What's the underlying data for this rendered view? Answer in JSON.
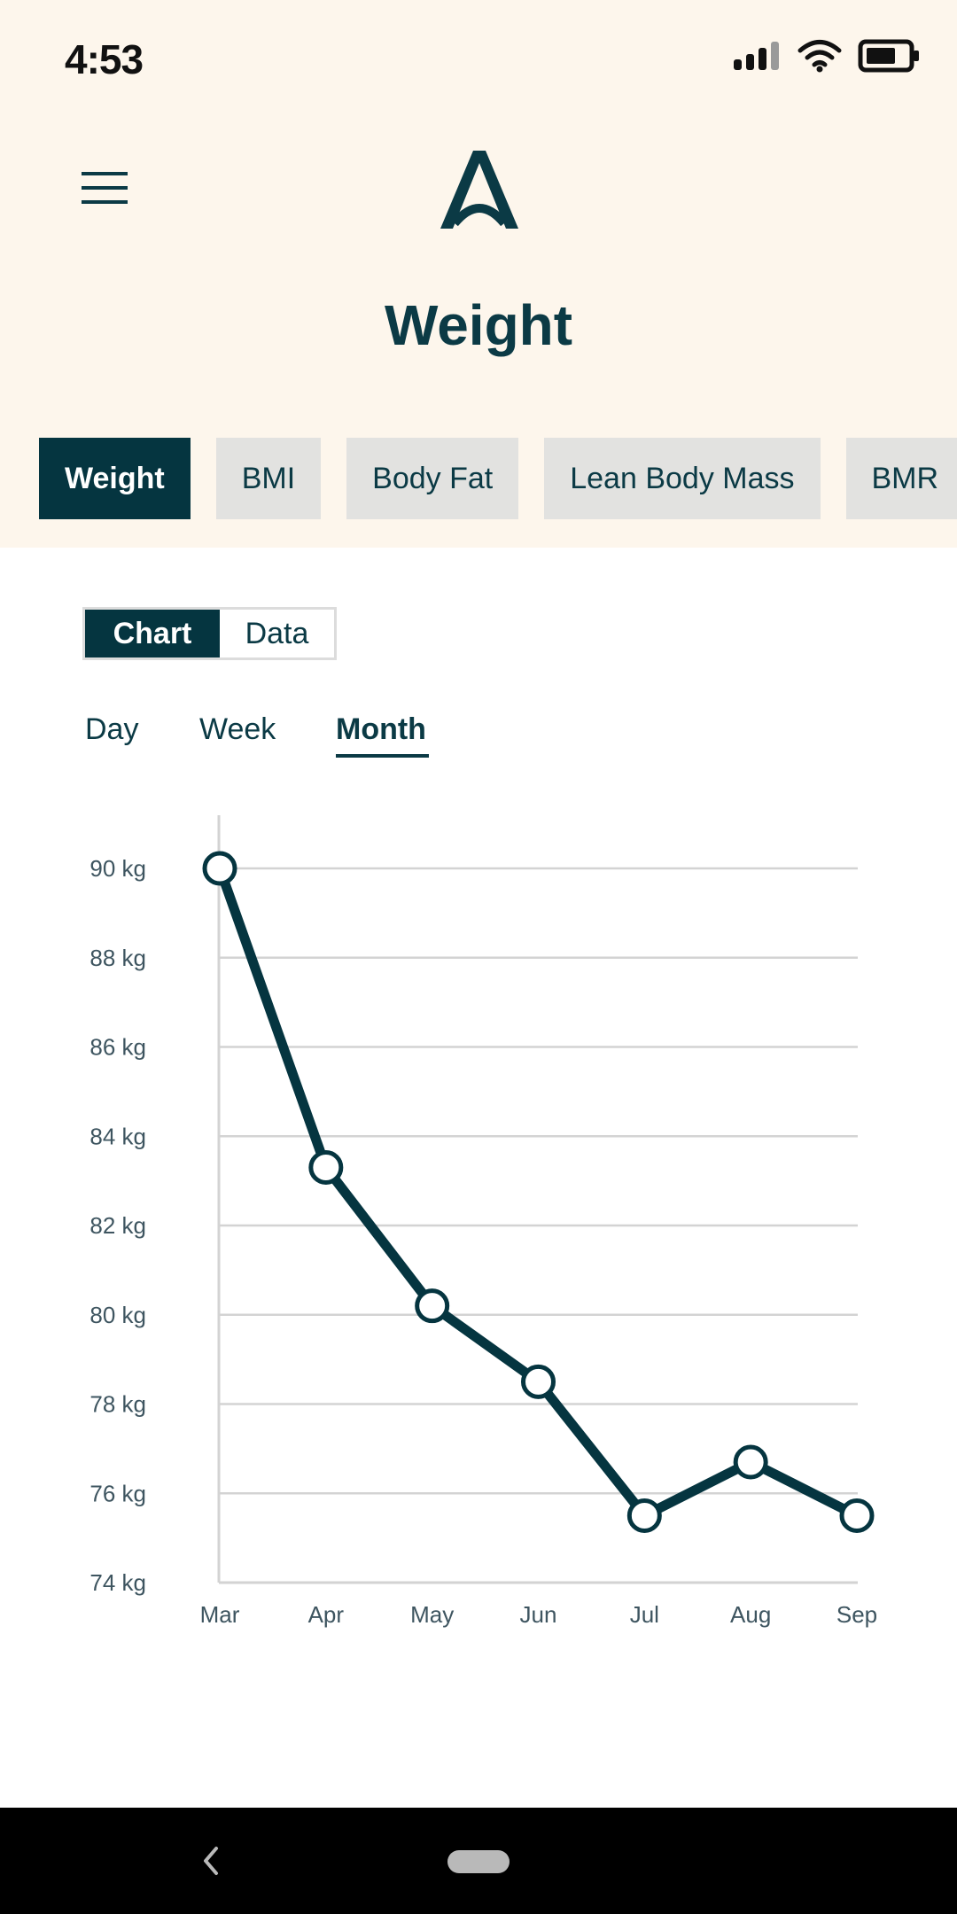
{
  "status_bar": {
    "time": "4:53"
  },
  "header": {
    "title": "Weight"
  },
  "metric_tabs": [
    "Weight",
    "BMI",
    "Body Fat",
    "Lean Body Mass",
    "BMR"
  ],
  "view_toggle": {
    "chart_label": "Chart",
    "data_label": "Data"
  },
  "period_tabs": [
    "Day",
    "Week",
    "Month"
  ],
  "colors": {
    "primary": "#053540",
    "header_bg": "#fdf6ec",
    "tab_bg": "#e2e2e0"
  },
  "chart_data": {
    "type": "line",
    "categories": [
      "Mar",
      "Apr",
      "May",
      "Jun",
      "Jul",
      "Aug",
      "Sep"
    ],
    "values": [
      90.0,
      83.3,
      80.2,
      78.5,
      75.5,
      76.7,
      75.5
    ],
    "y_ticks": [
      "90 kg",
      "88 kg",
      "86 kg",
      "84 kg",
      "82 kg",
      "80 kg",
      "78 kg",
      "76 kg",
      "74 kg"
    ],
    "ylim": [
      74,
      90
    ],
    "grid": true
  }
}
